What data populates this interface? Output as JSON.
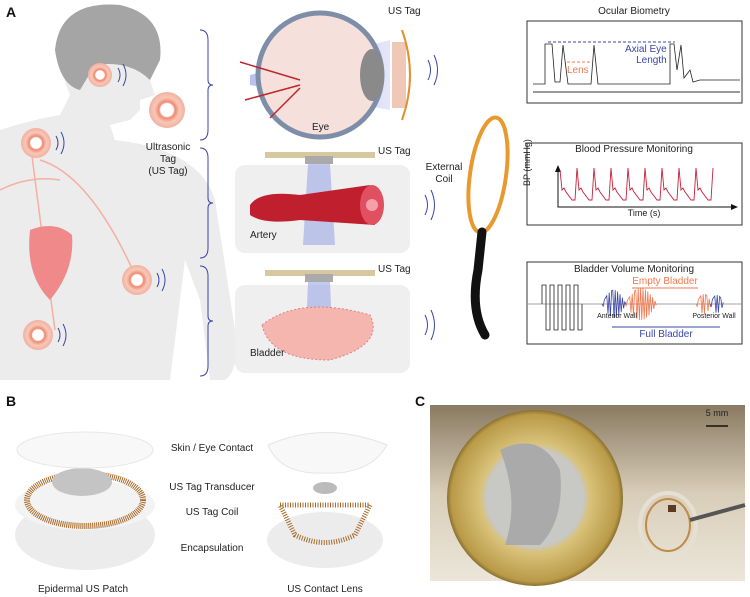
{
  "panels": {
    "a": "A",
    "b": "B",
    "c": "C"
  },
  "panel_a": {
    "tag_label": "Ultrasonic Tag (US Tag)",
    "tag_label_lines": [
      "Ultrasonic",
      "Tag",
      "(US Tag)"
    ],
    "us_tag": "US Tag",
    "eye": "Eye",
    "artery": "Artery",
    "bladder": "Bladder",
    "external_coil_lines": [
      "External",
      "Coil"
    ],
    "charts": [
      {
        "title": "Ocular Biometry",
        "annotations": [
          "Axial Eye",
          "Length",
          "Lens"
        ]
      },
      {
        "title": "Blood Pressure Monitoring",
        "xlabel": "Time (s)",
        "ylabel": "BP (mmHg)"
      },
      {
        "title": "Bladder Volume Monitoring",
        "annotations": [
          "Empty Bladder",
          "Anterior Wall",
          "Posterior Wall",
          "Full Bladder"
        ]
      }
    ],
    "colors": {
      "blue": "#3a45a8",
      "orange": "#f07850",
      "red": "#c8213a",
      "tag": "#f1b8a8"
    }
  },
  "panel_b": {
    "layers": [
      "Skin / Eye Contact",
      "US Tag Transducer",
      "US Tag Coil",
      "Encapsulation"
    ],
    "devices": [
      "Epidermal US Patch",
      "US Contact Lens"
    ]
  },
  "panel_c": {
    "scale_bar": "5 mm"
  }
}
